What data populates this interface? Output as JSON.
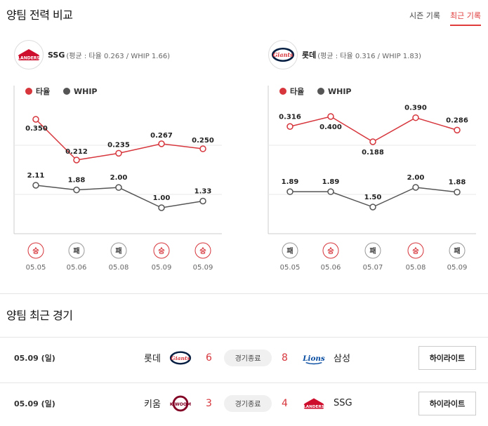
{
  "section1": {
    "title": "양팀 전력 비교",
    "tabs": [
      "시즌 기록",
      "최근 기록"
    ],
    "active_tab": 1
  },
  "left_team": {
    "name": "SSG",
    "stats": "(평균 : 타율 0.263 / WHIP 1.66)",
    "logo_text": "LANDERS",
    "color": "#ce0e2d"
  },
  "right_team": {
    "name": "롯데",
    "stats": "(평균 : 타율 0.316 / WHIP 1.83)",
    "logo_text": "Giants",
    "color": "#041e42"
  },
  "legend": {
    "avg": "타율",
    "whip": "WHIP"
  },
  "colors": {
    "avg": "#d6363c",
    "whip": "#555555",
    "win": "#d6363c",
    "loss": "#333333"
  },
  "chart_data": [
    {
      "type": "line",
      "categories": [
        "05.05",
        "05.06",
        "05.08",
        "05.09",
        "05.09"
      ],
      "series": [
        {
          "name": "타율",
          "values": [
            0.35,
            0.212,
            0.235,
            0.267,
            0.25
          ],
          "labels": [
            "0.350",
            "0.212",
            "0.235",
            "0.267",
            "0.250"
          ]
        },
        {
          "name": "WHIP",
          "values": [
            2.11,
            1.88,
            2.0,
            1.0,
            1.33
          ],
          "labels": [
            "2.11",
            "1.88",
            "2.00",
            "1.00",
            "1.33"
          ]
        }
      ],
      "results": [
        "승",
        "패",
        "패",
        "승",
        "승"
      ]
    },
    {
      "type": "line",
      "categories": [
        "05.05",
        "05.06",
        "05.07",
        "05.08",
        "05.09"
      ],
      "series": [
        {
          "name": "타율",
          "values": [
            0.316,
            0.4,
            0.188,
            0.39,
            0.286
          ],
          "labels": [
            "0.316",
            "0.400",
            "0.188",
            "0.390",
            "0.286"
          ]
        },
        {
          "name": "WHIP",
          "values": [
            1.89,
            1.89,
            1.5,
            2.0,
            1.88
          ],
          "labels": [
            "1.89",
            "1.89",
            "1.50",
            "2.00",
            "1.88"
          ]
        }
      ],
      "results": [
        "패",
        "승",
        "패",
        "승",
        "패"
      ]
    }
  ],
  "section2": {
    "title": "양팀 최근 경기"
  },
  "games": [
    {
      "date": "05.09 (일)",
      "home": "롯데",
      "home_score": "6",
      "status": "경기종료",
      "away_score": "8",
      "away": "삼성",
      "button": "하이라이트"
    },
    {
      "date": "05.09 (일)",
      "home": "키움",
      "home_score": "3",
      "status": "경기종료",
      "away_score": "4",
      "away": "SSG",
      "button": "하이라이트"
    }
  ]
}
